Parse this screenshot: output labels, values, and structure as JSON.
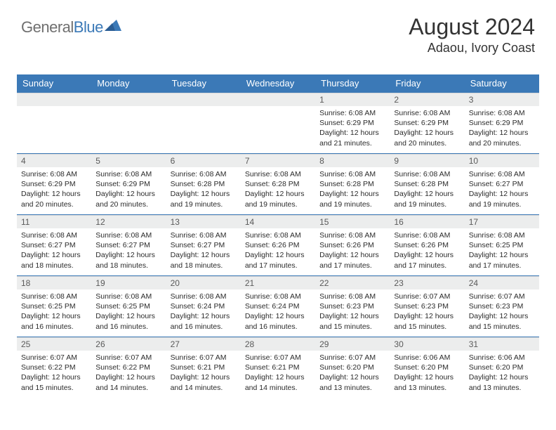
{
  "brand": {
    "part1": "General",
    "part2": "Blue"
  },
  "title": {
    "monthYear": "August 2024",
    "location": "Adaou, Ivory Coast"
  },
  "colors": {
    "headerBlue": "#3b79b7",
    "dayBarGray": "#eceded",
    "rowDivider": "#3b79b7",
    "textDark": "#2b2b2b",
    "brandGray": "#6f6f6f"
  },
  "weekdays": [
    "Sunday",
    "Monday",
    "Tuesday",
    "Wednesday",
    "Thursday",
    "Friday",
    "Saturday"
  ],
  "weeks": [
    [
      {
        "empty": true
      },
      {
        "empty": true
      },
      {
        "empty": true
      },
      {
        "empty": true
      },
      {
        "num": "1",
        "sunrise": "6:08 AM",
        "sunset": "6:29 PM",
        "daylight": "12 hours and 21 minutes."
      },
      {
        "num": "2",
        "sunrise": "6:08 AM",
        "sunset": "6:29 PM",
        "daylight": "12 hours and 20 minutes."
      },
      {
        "num": "3",
        "sunrise": "6:08 AM",
        "sunset": "6:29 PM",
        "daylight": "12 hours and 20 minutes."
      }
    ],
    [
      {
        "num": "4",
        "sunrise": "6:08 AM",
        "sunset": "6:29 PM",
        "daylight": "12 hours and 20 minutes."
      },
      {
        "num": "5",
        "sunrise": "6:08 AM",
        "sunset": "6:29 PM",
        "daylight": "12 hours and 20 minutes."
      },
      {
        "num": "6",
        "sunrise": "6:08 AM",
        "sunset": "6:28 PM",
        "daylight": "12 hours and 19 minutes."
      },
      {
        "num": "7",
        "sunrise": "6:08 AM",
        "sunset": "6:28 PM",
        "daylight": "12 hours and 19 minutes."
      },
      {
        "num": "8",
        "sunrise": "6:08 AM",
        "sunset": "6:28 PM",
        "daylight": "12 hours and 19 minutes."
      },
      {
        "num": "9",
        "sunrise": "6:08 AM",
        "sunset": "6:28 PM",
        "daylight": "12 hours and 19 minutes."
      },
      {
        "num": "10",
        "sunrise": "6:08 AM",
        "sunset": "6:27 PM",
        "daylight": "12 hours and 19 minutes."
      }
    ],
    [
      {
        "num": "11",
        "sunrise": "6:08 AM",
        "sunset": "6:27 PM",
        "daylight": "12 hours and 18 minutes."
      },
      {
        "num": "12",
        "sunrise": "6:08 AM",
        "sunset": "6:27 PM",
        "daylight": "12 hours and 18 minutes."
      },
      {
        "num": "13",
        "sunrise": "6:08 AM",
        "sunset": "6:27 PM",
        "daylight": "12 hours and 18 minutes."
      },
      {
        "num": "14",
        "sunrise": "6:08 AM",
        "sunset": "6:26 PM",
        "daylight": "12 hours and 17 minutes."
      },
      {
        "num": "15",
        "sunrise": "6:08 AM",
        "sunset": "6:26 PM",
        "daylight": "12 hours and 17 minutes."
      },
      {
        "num": "16",
        "sunrise": "6:08 AM",
        "sunset": "6:26 PM",
        "daylight": "12 hours and 17 minutes."
      },
      {
        "num": "17",
        "sunrise": "6:08 AM",
        "sunset": "6:25 PM",
        "daylight": "12 hours and 17 minutes."
      }
    ],
    [
      {
        "num": "18",
        "sunrise": "6:08 AM",
        "sunset": "6:25 PM",
        "daylight": "12 hours and 16 minutes."
      },
      {
        "num": "19",
        "sunrise": "6:08 AM",
        "sunset": "6:25 PM",
        "daylight": "12 hours and 16 minutes."
      },
      {
        "num": "20",
        "sunrise": "6:08 AM",
        "sunset": "6:24 PM",
        "daylight": "12 hours and 16 minutes."
      },
      {
        "num": "21",
        "sunrise": "6:08 AM",
        "sunset": "6:24 PM",
        "daylight": "12 hours and 16 minutes."
      },
      {
        "num": "22",
        "sunrise": "6:08 AM",
        "sunset": "6:23 PM",
        "daylight": "12 hours and 15 minutes."
      },
      {
        "num": "23",
        "sunrise": "6:07 AM",
        "sunset": "6:23 PM",
        "daylight": "12 hours and 15 minutes."
      },
      {
        "num": "24",
        "sunrise": "6:07 AM",
        "sunset": "6:23 PM",
        "daylight": "12 hours and 15 minutes."
      }
    ],
    [
      {
        "num": "25",
        "sunrise": "6:07 AM",
        "sunset": "6:22 PM",
        "daylight": "12 hours and 15 minutes."
      },
      {
        "num": "26",
        "sunrise": "6:07 AM",
        "sunset": "6:22 PM",
        "daylight": "12 hours and 14 minutes."
      },
      {
        "num": "27",
        "sunrise": "6:07 AM",
        "sunset": "6:21 PM",
        "daylight": "12 hours and 14 minutes."
      },
      {
        "num": "28",
        "sunrise": "6:07 AM",
        "sunset": "6:21 PM",
        "daylight": "12 hours and 14 minutes."
      },
      {
        "num": "29",
        "sunrise": "6:07 AM",
        "sunset": "6:20 PM",
        "daylight": "12 hours and 13 minutes."
      },
      {
        "num": "30",
        "sunrise": "6:06 AM",
        "sunset": "6:20 PM",
        "daylight": "12 hours and 13 minutes."
      },
      {
        "num": "31",
        "sunrise": "6:06 AM",
        "sunset": "6:20 PM",
        "daylight": "12 hours and 13 minutes."
      }
    ]
  ],
  "labels": {
    "sunrise": "Sunrise:",
    "sunset": "Sunset:",
    "daylight": "Daylight:"
  }
}
